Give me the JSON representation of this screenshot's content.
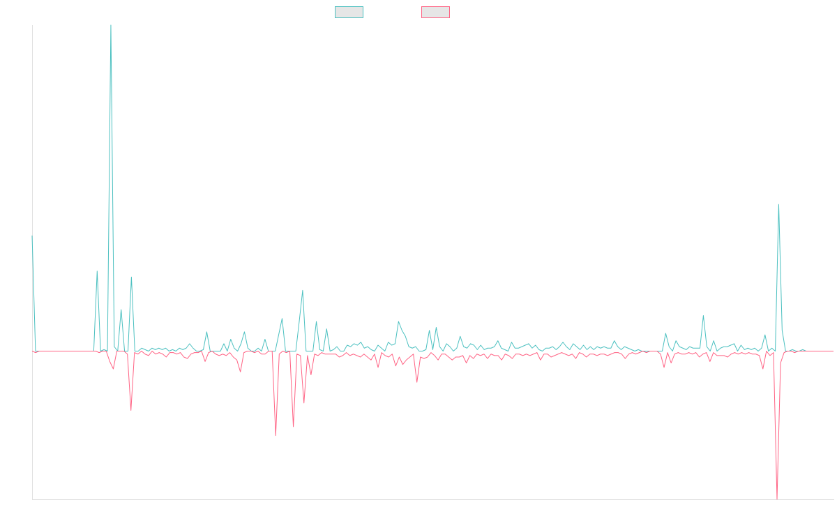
{
  "chart_data": {
    "type": "line",
    "title": "",
    "xlabel": "",
    "ylabel": "",
    "ylim": [
      -1.0,
      2.2
    ],
    "grid": false,
    "legend": "top-center",
    "series": [
      {
        "color": "#4bc0c0",
        "values": [
          0.78,
          0,
          0,
          0,
          0,
          0,
          0,
          0,
          0,
          0,
          0,
          0,
          0,
          0,
          0,
          0,
          0,
          0,
          0,
          0.54,
          0,
          0.01,
          0,
          2.2,
          0.03,
          0,
          0.28,
          0,
          0,
          0.5,
          0,
          0,
          0.02,
          0.01,
          0,
          0.02,
          0.01,
          0.02,
          0.01,
          0.02,
          0,
          0.01,
          0,
          0.02,
          0.01,
          0.02,
          0.05,
          0.02,
          0,
          0,
          0.01,
          0.13,
          0,
          0,
          0,
          0,
          0.05,
          0,
          0.08,
          0.02,
          0,
          0.05,
          0.13,
          0.02,
          0,
          0,
          0.02,
          0,
          0.08,
          0,
          0,
          0,
          0.11,
          0.22,
          0,
          0,
          0,
          0,
          0.2,
          0.41,
          0,
          0,
          0,
          0.2,
          0.01,
          0,
          0.15,
          0,
          0.01,
          0.03,
          0,
          0,
          0.04,
          0.03,
          0.05,
          0.04,
          0.06,
          0.02,
          0.03,
          0.01,
          0,
          0.04,
          0.02,
          0,
          0.06,
          0.04,
          0.05,
          0.2,
          0.14,
          0.1,
          0.03,
          0.02,
          0.03,
          0,
          0,
          0.01,
          0.14,
          0.01,
          0.16,
          0.03,
          0,
          0.05,
          0.03,
          0,
          0.02,
          0.1,
          0.03,
          0.02,
          0.05,
          0.04,
          0.01,
          0.04,
          0.01,
          0.02,
          0.02,
          0.03,
          0.07,
          0.02,
          0.01,
          0,
          0.06,
          0.02,
          0.02,
          0.03,
          0.04,
          0.05,
          0.02,
          0.04,
          0.01,
          0,
          0.02,
          0.02,
          0.03,
          0.01,
          0.03,
          0.06,
          0.03,
          0.01,
          0.05,
          0.03,
          0.01,
          0.04,
          0.01,
          0.03,
          0.01,
          0.03,
          0.02,
          0.03,
          0.02,
          0.02,
          0.07,
          0.03,
          0.01,
          0.03,
          0.02,
          0.01,
          0,
          0.01,
          0,
          0,
          0,
          0,
          0,
          0,
          0,
          0.12,
          0.03,
          0,
          0.07,
          0.03,
          0.02,
          0.01,
          0.03,
          0.02,
          0.02,
          0.02,
          0.24,
          0.03,
          0,
          0.07,
          0,
          0.02,
          0.03,
          0.03,
          0.04,
          0.05,
          0,
          0.04,
          0.01,
          0.02,
          0.01,
          0.02,
          0,
          0.02,
          0.11,
          0,
          0.02,
          0,
          0.99,
          0.14,
          0,
          0,
          0.01,
          0,
          0,
          0.01,
          0,
          0,
          0,
          0,
          0,
          0,
          0,
          0,
          0
        ]
      },
      {
        "color": "#ff6384",
        "values": [
          0,
          -0.01,
          0,
          0,
          0,
          0,
          0,
          0,
          0,
          0,
          0,
          0,
          0,
          0,
          0,
          0,
          0,
          0,
          0,
          -0.01,
          0,
          0,
          -0.07,
          -0.12,
          0,
          0,
          0,
          -0.02,
          -0.4,
          -0.01,
          -0.02,
          0,
          -0.02,
          -0.03,
          0,
          -0.02,
          -0.01,
          -0.02,
          -0.04,
          -0.01,
          -0.01,
          -0.02,
          -0.01,
          -0.04,
          -0.05,
          -0.02,
          -0.01,
          -0.01,
          0,
          -0.07,
          -0.01,
          0,
          -0.02,
          -0.03,
          -0.02,
          -0.03,
          -0.01,
          -0.04,
          -0.06,
          -0.14,
          -0.01,
          0,
          0,
          -0.01,
          0,
          -0.02,
          -0.02,
          0,
          0,
          -0.57,
          -0.02,
          0,
          -0.01,
          0,
          -0.51,
          -0.02,
          -0.03,
          -0.35,
          -0.03,
          -0.16,
          -0.02,
          -0.03,
          -0.01,
          -0.02,
          -0.02,
          -0.02,
          -0.02,
          -0.04,
          -0.03,
          -0.01,
          -0.03,
          -0.02,
          -0.03,
          -0.04,
          -0.02,
          -0.04,
          -0.06,
          -0.02,
          -0.11,
          -0.01,
          -0.03,
          -0.04,
          -0.02,
          -0.1,
          -0.04,
          -0.09,
          -0.06,
          -0.04,
          -0.02,
          -0.21,
          -0.04,
          -0.05,
          -0.04,
          -0.01,
          -0.03,
          -0.06,
          -0.02,
          -0.02,
          -0.04,
          -0.06,
          -0.04,
          -0.04,
          -0.03,
          -0.08,
          -0.03,
          -0.05,
          -0.02,
          -0.03,
          -0.02,
          -0.05,
          -0.02,
          -0.03,
          -0.03,
          -0.06,
          -0.02,
          -0.03,
          -0.05,
          -0.02,
          -0.02,
          -0.03,
          -0.02,
          -0.03,
          -0.02,
          -0.01,
          -0.06,
          -0.02,
          -0.02,
          -0.04,
          -0.03,
          -0.02,
          -0.01,
          -0.02,
          -0.03,
          -0.02,
          -0.05,
          -0.01,
          -0.02,
          -0.04,
          -0.02,
          -0.02,
          -0.03,
          -0.02,
          -0.02,
          -0.03,
          -0.02,
          -0.01,
          -0.01,
          -0.02,
          -0.05,
          -0.02,
          -0.01,
          -0.02,
          -0.01,
          0,
          -0.01,
          0,
          0,
          0,
          -0.02,
          -0.11,
          -0.01,
          -0.08,
          -0.02,
          -0.01,
          -0.02,
          -0.02,
          -0.01,
          -0.02,
          -0.01,
          -0.04,
          -0.02,
          -0.01,
          -0.07,
          -0.01,
          -0.03,
          -0.03,
          -0.03,
          -0.04,
          -0.02,
          -0.01,
          -0.02,
          -0.01,
          -0.02,
          -0.01,
          -0.02,
          -0.02,
          -0.03,
          -0.12,
          0,
          -0.03,
          -0.01,
          -1.0,
          -0.08,
          -0.01,
          0,
          0,
          -0.01,
          0,
          0,
          0,
          0,
          0,
          0,
          0,
          0,
          0,
          0,
          0
        ]
      }
    ]
  }
}
